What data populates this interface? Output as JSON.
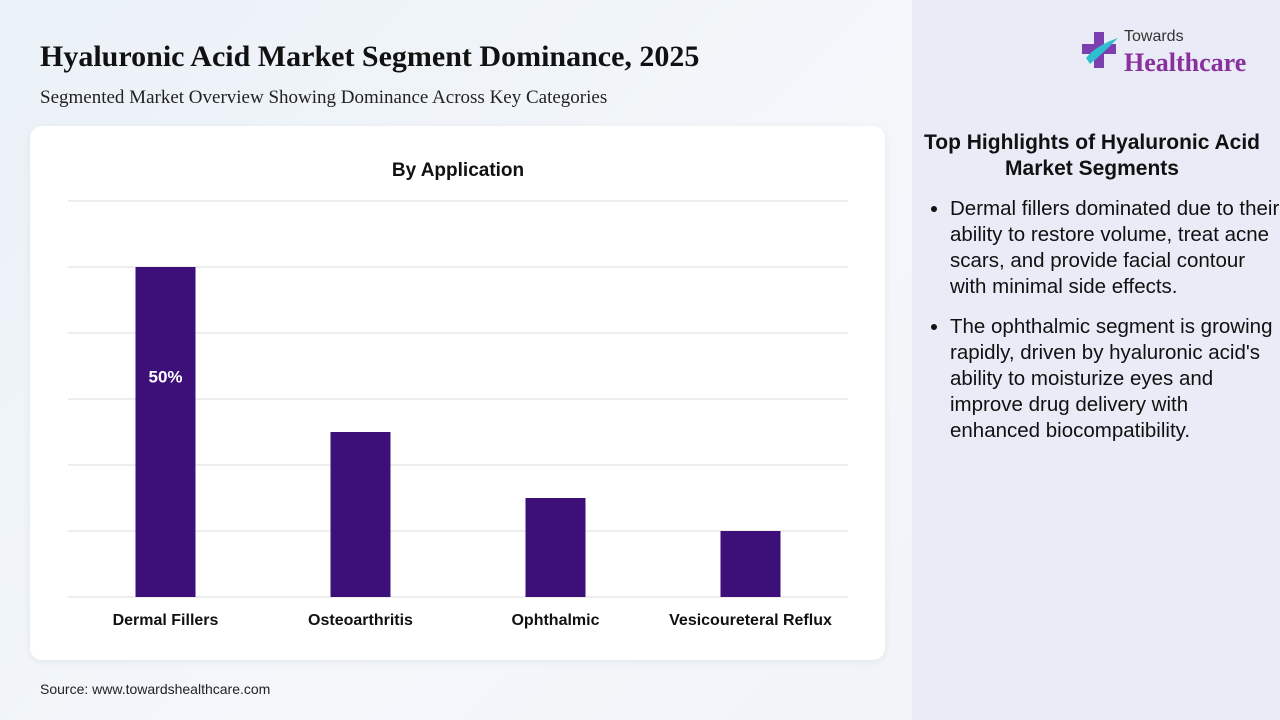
{
  "header": {
    "title": "Hyaluronic Acid Market Segment Dominance, 2025",
    "subtitle": "Segmented Market Overview Showing Dominance Across Key Categories"
  },
  "logo": {
    "line1": "Towards",
    "line2": "Healthcare"
  },
  "chart_data": {
    "type": "bar",
    "title": "By Application",
    "categories": [
      "Dermal Fillers",
      "Osteoarthritis",
      "Ophthalmic",
      "Vesicoureteral Reflux"
    ],
    "values": [
      50,
      25,
      15,
      10
    ],
    "value_labels": [
      "50%",
      null,
      null,
      null
    ],
    "color": "#3d0f78",
    "ylim": [
      0,
      60
    ],
    "yticks": [
      0,
      10,
      20,
      30,
      40,
      50,
      60
    ],
    "ytick_labels": false,
    "grid": true
  },
  "highlights": {
    "title": "Top Highlights of Hyaluronic Acid Market Segments",
    "items": [
      "Dermal fillers dominated due to their ability to restore volume, treat acne scars, and provide facial contour with minimal side effects.",
      "The ophthalmic segment is growing rapidly, driven by hyaluronic acid's ability to moisturize eyes and improve drug delivery with enhanced biocompatibility."
    ]
  },
  "source": "Source: www.towardshealthcare.com"
}
